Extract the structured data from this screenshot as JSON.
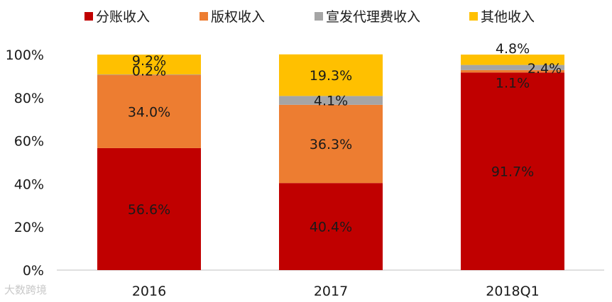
{
  "chart_data": {
    "type": "bar",
    "stacked": true,
    "categories": [
      "2016",
      "2017",
      "2018Q1"
    ],
    "series": [
      {
        "name": "分账收入",
        "color": "#c00000",
        "values": [
          56.6,
          40.4,
          91.7
        ],
        "labels": [
          "56.6%",
          "40.4%",
          "91.7%"
        ]
      },
      {
        "name": "版权收入",
        "color": "#ed7d31",
        "values": [
          34.0,
          36.3,
          1.1
        ],
        "labels": [
          "34.0%",
          "36.3%",
          "1.1%"
        ]
      },
      {
        "name": "宣发代理费收入",
        "color": "#a5a5a5",
        "values": [
          0.2,
          4.1,
          2.4
        ],
        "labels": [
          "0.2%",
          "4.1%",
          "2.4%"
        ]
      },
      {
        "name": "其他收入",
        "color": "#ffc000",
        "values": [
          9.2,
          19.3,
          4.8
        ],
        "labels": [
          "9.2%",
          "19.3%",
          "4.8%"
        ]
      }
    ],
    "y_ticks": [
      "0%",
      "20%",
      "40%",
      "60%",
      "80%",
      "100%"
    ],
    "ylim": [
      0,
      100
    ],
    "legend_position": "top"
  },
  "watermark": "大数跨境"
}
